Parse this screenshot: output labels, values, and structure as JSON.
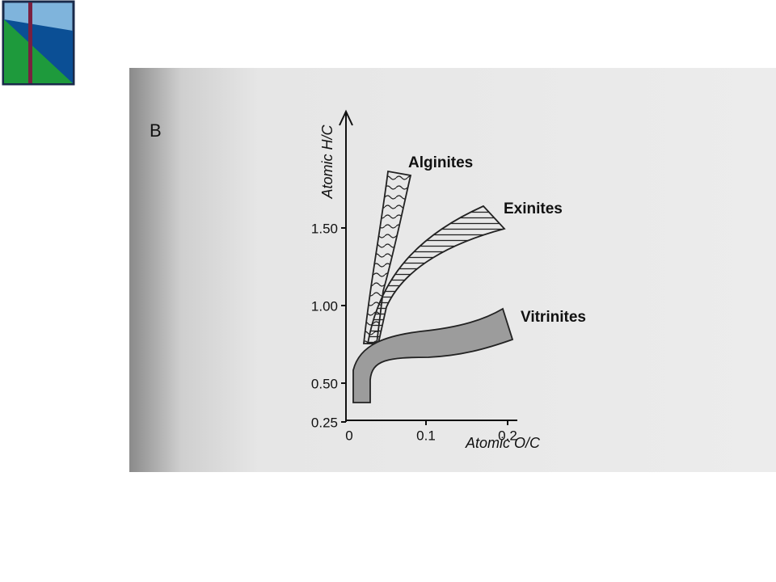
{
  "figure": {
    "panel_label": "B",
    "y_axis": {
      "label": "Atomic H/C",
      "ticks": [
        {
          "value": 0.25,
          "label": "0.25"
        },
        {
          "value": 0.5,
          "label": "0.50"
        },
        {
          "value": 1.0,
          "label": "1.00"
        },
        {
          "value": 1.5,
          "label": "1.50"
        }
      ]
    },
    "x_axis": {
      "label": "Atomic O/C",
      "ticks": [
        0,
        0.1,
        0.2
      ]
    },
    "regions": [
      {
        "label": "Alginites"
      },
      {
        "label": "Exinites"
      },
      {
        "label": "Vitrinites"
      }
    ]
  }
}
